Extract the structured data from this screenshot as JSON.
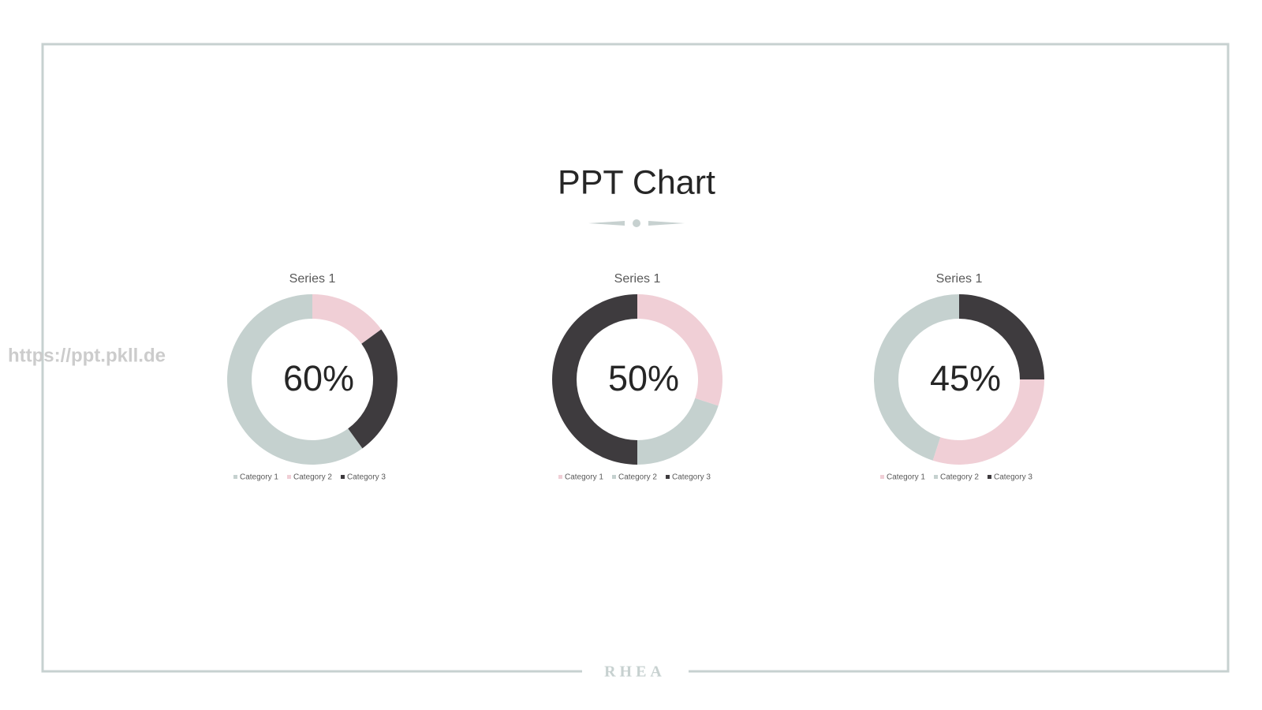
{
  "slide": {
    "title": "PPT Chart",
    "footer": "RHEA",
    "watermark": "https://ppt.pkll.de"
  },
  "chart_data": [
    {
      "type": "donut",
      "title": "Series 1",
      "center_label": "60%",
      "categories": [
        "Category 1",
        "Category 2",
        "Category 3"
      ],
      "values": [
        60,
        15,
        25
      ],
      "colors": [
        "#c5d1cf",
        "#f0cfd6",
        "#3e3b3e"
      ],
      "start_angle": 144
    },
    {
      "type": "donut",
      "title": "Series 1",
      "center_label": "50%",
      "categories": [
        "Category 1",
        "Category 2",
        "Category 3"
      ],
      "values": [
        30,
        20,
        50
      ],
      "colors": [
        "#f0cfd6",
        "#c5d1cf",
        "#3e3b3e"
      ],
      "start_angle": 0
    },
    {
      "type": "donut",
      "title": "Series 1",
      "center_label": "45%",
      "categories": [
        "Category 1",
        "Category 2",
        "Category 3"
      ],
      "values": [
        30,
        45,
        25
      ],
      "colors": [
        "#f0cfd6",
        "#c5d1cf",
        "#3e3b3e"
      ],
      "start_angle": 90
    }
  ]
}
